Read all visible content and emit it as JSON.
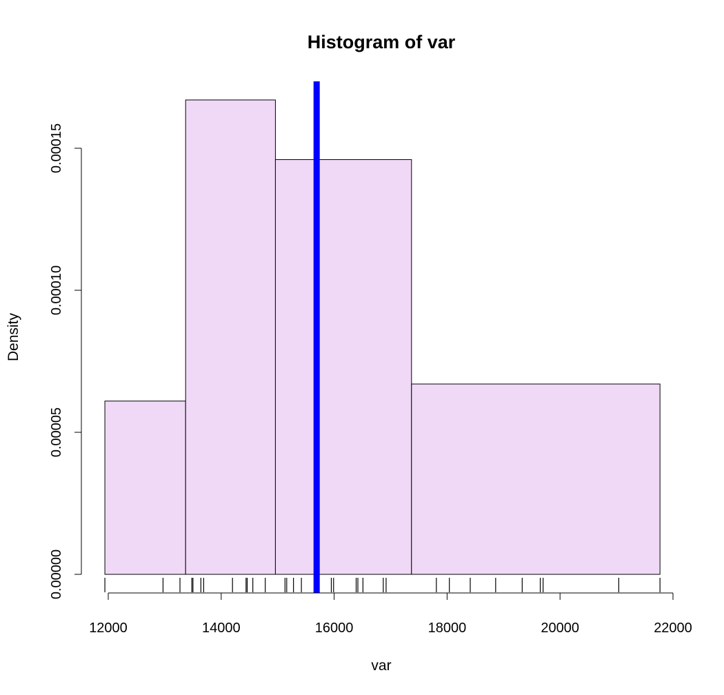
{
  "chart_data": {
    "type": "bar",
    "title": "Histogram of var",
    "xlabel": "var",
    "ylabel": "Density",
    "xlim": [
      12000,
      22000
    ],
    "ylim": [
      0,
      0.00017
    ],
    "bins": [
      {
        "from": 11940,
        "to": 13370,
        "density": 6.1e-05
      },
      {
        "from": 13370,
        "to": 14960,
        "density": 0.000167
      },
      {
        "from": 14960,
        "to": 17370,
        "density": 0.000146
      },
      {
        "from": 17370,
        "to": 21770,
        "density": 6.7e-05
      }
    ],
    "bar_fill": "#f0d9f7",
    "bar_stroke": "#000000",
    "mean_line": {
      "x": 15690,
      "color": "#0000ff"
    },
    "x_ticks": [
      {
        "value": 12000,
        "label": "12000"
      },
      {
        "value": 14000,
        "label": "14000"
      },
      {
        "value": 16000,
        "label": "16000"
      },
      {
        "value": 18000,
        "label": "18000"
      },
      {
        "value": 20000,
        "label": "20000"
      },
      {
        "value": 22000,
        "label": "22000"
      }
    ],
    "y_ticks": [
      {
        "value": 0,
        "label": "0.00000"
      },
      {
        "value": 5e-05,
        "label": "0.00005"
      },
      {
        "value": 0.0001,
        "label": "0.00010"
      },
      {
        "value": 0.00015,
        "label": "0.00015"
      }
    ],
    "rug": [
      11940,
      12970,
      13270,
      13480,
      13500,
      13640,
      13690,
      14200,
      14440,
      14460,
      14560,
      14780,
      15130,
      15160,
      15280,
      15420,
      15950,
      15990,
      16390,
      16420,
      16510,
      16870,
      16920,
      17810,
      18040,
      18410,
      18860,
      19330,
      19650,
      19700,
      21040,
      21770
    ],
    "grid": false,
    "legend": "none"
  }
}
